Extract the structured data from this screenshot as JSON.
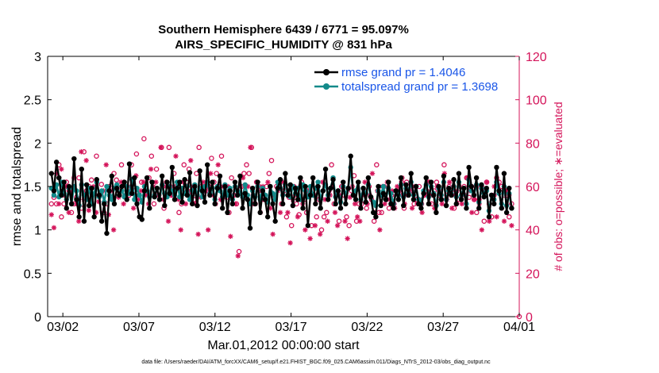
{
  "chart_data": {
    "type": "line",
    "title_line1": "Southern Hemisphere 6439 / 6771 = 95.097%",
    "title_line2": "AIRS_SPECIFIC_HUMIDITY @ 831 hPa",
    "xlabel": "Mar.01,2012 00:00:00 start",
    "ylabel_left": "rmse and totalspread",
    "ylabel_right": "# of obs: o=possible; ∗=evaluated",
    "footer": "data file: /Users/raeder/DAI/ATM_forcXX/CAM6_setup/f.e21.FHIST_BGC.f09_025.CAM6assim.011/Diags_NTrS_2012-03/obs_diag_output.nc",
    "xlim": [
      0,
      31
    ],
    "ylim_left": [
      0,
      3
    ],
    "ylim_right": [
      0,
      120
    ],
    "x_ticks": [
      1,
      6,
      11,
      16,
      21,
      26,
      31
    ],
    "x_tick_labels": [
      "03/02",
      "03/07",
      "03/12",
      "03/17",
      "03/22",
      "03/27",
      "04/01"
    ],
    "y_ticks_left": [
      "0",
      "0.5",
      "1",
      "1.5",
      "2",
      "2.5",
      "3"
    ],
    "y_ticks_right": [
      "0",
      "20",
      "40",
      "60",
      "80",
      "100",
      "120"
    ],
    "colors": {
      "rmse": "#000000",
      "spread": "#138a8a",
      "obs": "#d4145a",
      "legend_text": "#1a56e8"
    },
    "series": [
      {
        "name": "rmse grand pr = 1.4046",
        "values": [
          1.65,
          1.45,
          1.78,
          1.6,
          1.4,
          1.55,
          1.25,
          1.5,
          1.3,
          1.82,
          1.35,
          1.15,
          1.7,
          1.1,
          1.52,
          1.28,
          1.48,
          1.15,
          1.58,
          1.4,
          1.1,
          1.3,
          0.96,
          1.45,
          1.62,
          1.3,
          1.48,
          1.4,
          1.5,
          1.55,
          1.35,
          1.76,
          1.42,
          1.6,
          1.3,
          1.15,
          1.12,
          1.45,
          1.6,
          1.25,
          1.55,
          1.38,
          1.48,
          1.35,
          1.62,
          1.28,
          1.55,
          1.42,
          1.72,
          1.35,
          1.48,
          1.55,
          1.32,
          1.58,
          1.4,
          1.66,
          1.3,
          1.5,
          1.28,
          1.68,
          1.45,
          1.32,
          1.75,
          1.4,
          1.55,
          1.3,
          1.48,
          1.62,
          1.25,
          1.5,
          1.2,
          1.45,
          1.3,
          1.55,
          1.4,
          1.62,
          1.25,
          1.42,
          1.35,
          1.02,
          1.48,
          1.3,
          1.55,
          1.2,
          1.45,
          1.35,
          1.15,
          1.5,
          1.3,
          1.1,
          1.48,
          1.58,
          1.3,
          1.65,
          1.4,
          1.52,
          1.28,
          1.48,
          1.35,
          1.6,
          1.25,
          1.5,
          1.05,
          1.4,
          1.6,
          1.3,
          1.5,
          1.25,
          1.45,
          1.7,
          1.35,
          1.48,
          1.58,
          1.3,
          1.45,
          1.25,
          1.55,
          1.3,
          1.48,
          1.85,
          1.4,
          1.35,
          1.55,
          1.25,
          1.48,
          1.32,
          1.6,
          1.38,
          1.2,
          1.15,
          1.5,
          1.28,
          1.42,
          1.35,
          1.55,
          1.3,
          1.25,
          1.45,
          1.35,
          1.6,
          1.28,
          1.52,
          1.4,
          1.65,
          1.35,
          1.5,
          1.3,
          1.25,
          1.42,
          1.6,
          1.3,
          1.55,
          1.4,
          1.2,
          1.5,
          1.35,
          1.62,
          1.28,
          1.48,
          1.4,
          1.58,
          1.3,
          1.65,
          1.35,
          1.48,
          1.25,
          1.72,
          1.5,
          1.4,
          1.6,
          1.25,
          1.52,
          1.38,
          1.48,
          1.15,
          1.4,
          1.3,
          1.72,
          1.45,
          1.25,
          1.65,
          1.2,
          1.48,
          1.25
        ]
      },
      {
        "name": "totalspread grand pr = 1.3698",
        "values": [
          1.48,
          1.4,
          1.52,
          1.38,
          1.55,
          1.42,
          1.35,
          1.48,
          1.3,
          1.5,
          1.45,
          1.28,
          1.52,
          1.4,
          1.35,
          1.48,
          1.3,
          1.42,
          1.55,
          1.38,
          1.45,
          1.32,
          1.5,
          1.4,
          1.35,
          1.48,
          1.52,
          1.4,
          1.45,
          1.38,
          1.5,
          1.42,
          1.58,
          1.35,
          1.48,
          1.4,
          1.32,
          1.5,
          1.45,
          1.38,
          1.55,
          1.4,
          1.48,
          1.35,
          1.52,
          1.42,
          1.38,
          1.5,
          1.45,
          1.4,
          1.55,
          1.38,
          1.48,
          1.42,
          1.5,
          1.35,
          1.45,
          1.52,
          1.4,
          1.48,
          1.38,
          1.5,
          1.55,
          1.42,
          1.48,
          1.35,
          1.5,
          1.45,
          1.38,
          1.52,
          1.4,
          1.48,
          1.35,
          1.5,
          1.45,
          1.42,
          1.38,
          1.52,
          1.4,
          1.3,
          1.45,
          1.38,
          1.5,
          1.35,
          1.48,
          1.4,
          1.32,
          1.5,
          1.42,
          1.35,
          1.55,
          1.48,
          1.4,
          1.52,
          1.45,
          1.38,
          1.5,
          1.42,
          1.48,
          1.35,
          1.52,
          1.45,
          1.38,
          1.5,
          1.4,
          1.48,
          1.55,
          1.35,
          1.45,
          1.52,
          1.4,
          1.48,
          1.6,
          1.38,
          1.45,
          1.32,
          1.5,
          1.42,
          1.48,
          1.72,
          1.4,
          1.45,
          1.55,
          1.35,
          1.48,
          1.42,
          1.52,
          1.38,
          1.32,
          1.28,
          1.45,
          1.4,
          1.5,
          1.35,
          1.48,
          1.42,
          1.3,
          1.45,
          1.4,
          1.52,
          1.38,
          1.48,
          1.42,
          1.55,
          1.4,
          1.5,
          1.35,
          1.3,
          1.45,
          1.52,
          1.38,
          1.5,
          1.42,
          1.28,
          1.48,
          1.4,
          1.55,
          1.35,
          1.45,
          1.42,
          1.5,
          1.38,
          1.55,
          1.4,
          1.48,
          1.3,
          1.58,
          1.45,
          1.4,
          1.52,
          1.32,
          1.48,
          1.42,
          1.45,
          1.22,
          1.4,
          1.35,
          1.55,
          1.42,
          1.3,
          1.5,
          1.28,
          1.42,
          1.25
        ]
      },
      {
        "name": "# of obs possible",
        "values": [
          52,
          55,
          52,
          70,
          46,
          52,
          62,
          58,
          48,
          52,
          55,
          64,
          50,
          76,
          58,
          60,
          63,
          58,
          74,
          56,
          61,
          48,
          52,
          60,
          55,
          66,
          63,
          58,
          70,
          62,
          60,
          56,
          70,
          58,
          75,
          56,
          62,
          82,
          58,
          64,
          74,
          52,
          68,
          56,
          78,
          50,
          62,
          78,
          56,
          66,
          60,
          48,
          52,
          70,
          62,
          68,
          56,
          54,
          66,
          78,
          60,
          56,
          58,
          60,
          73,
          62,
          66,
          60,
          74,
          56,
          55,
          48,
          64,
          56,
          52,
          30,
          60,
          66,
          70,
          66,
          78,
          52,
          62,
          60,
          58,
          54,
          60,
          66,
          72,
          56,
          60,
          60,
          52,
          58,
          46,
          55,
          42,
          60,
          52,
          47,
          62,
          54,
          48,
          58,
          42,
          56,
          46,
          54,
          40,
          46,
          48,
          58,
          70,
          52,
          56,
          44,
          60,
          56,
          46,
          42,
          58,
          65,
          44,
          52,
          52,
          58,
          50,
          60,
          54,
          44,
          70,
          48,
          48,
          60,
          54,
          50,
          56,
          52,
          58,
          58,
          62,
          50,
          62,
          60,
          58,
          52,
          54,
          60,
          52,
          56,
          58,
          62,
          52,
          58,
          62,
          56,
          54,
          70,
          56,
          60,
          58,
          50,
          52,
          54,
          56,
          60,
          64,
          55,
          60,
          54,
          48,
          54,
          60,
          44,
          62,
          52,
          46,
          56,
          64,
          62,
          60,
          56,
          56,
          46,
          52,
          0
        ]
      },
      {
        "name": "# of obs evaluated",
        "values": [
          47,
          41,
          66,
          52,
          68,
          56,
          60,
          48,
          57,
          64,
          52,
          44,
          76,
          54,
          72,
          49,
          54,
          60,
          48,
          53,
          56,
          58,
          70,
          47,
          58,
          40,
          60,
          55,
          62,
          52,
          56,
          60,
          58,
          50,
          65,
          54,
          58,
          62,
          56,
          52,
          68,
          60,
          62,
          56,
          78,
          54,
          60,
          44,
          56,
          60,
          74,
          54,
          40,
          62,
          52,
          58,
          72,
          60,
          52,
          38,
          55,
          62,
          58,
          40,
          66,
          56,
          52,
          70,
          54,
          60,
          58,
          60,
          37,
          56,
          52,
          28,
          60,
          64,
          56,
          60,
          78,
          56,
          52,
          60,
          48,
          60,
          56,
          62,
          50,
          38,
          56,
          58,
          48,
          62,
          60,
          48,
          34,
          54,
          56,
          46,
          60,
          52,
          40,
          58,
          36,
          56,
          42,
          60,
          38,
          62,
          54,
          44,
          56,
          60,
          48,
          42,
          56,
          60,
          44,
          36,
          55,
          60,
          52,
          46,
          44,
          56,
          62,
          52,
          56,
          66,
          48,
          58,
          40,
          60,
          52,
          62,
          54,
          58,
          50,
          60,
          56,
          64,
          52,
          56,
          58,
          50,
          60,
          52,
          54,
          48,
          56,
          62,
          52,
          56,
          50,
          60,
          58,
          52,
          66,
          54,
          62,
          50,
          56,
          58,
          60,
          52,
          56,
          64,
          58,
          48,
          54,
          60,
          52,
          40,
          58,
          62,
          44,
          56,
          60,
          46,
          58,
          50,
          44,
          58,
          56,
          42
        ]
      }
    ]
  }
}
